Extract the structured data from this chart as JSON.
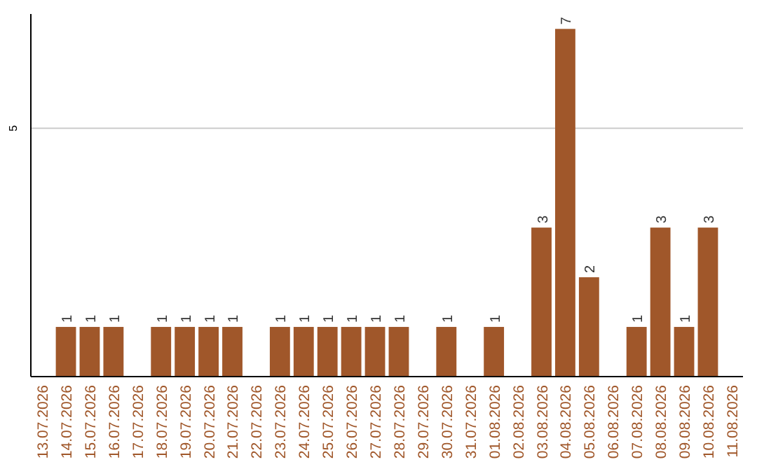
{
  "chart_data": {
    "type": "bar",
    "categories": [
      "13.07.2026",
      "14.07.2026",
      "15.07.2026",
      "16.07.2026",
      "17.07.2026",
      "18.07.2026",
      "19.07.2026",
      "20.07.2026",
      "21.07.2026",
      "22.07.2026",
      "23.07.2026",
      "24.07.2026",
      "25.07.2026",
      "26.07.2026",
      "27.07.2026",
      "28.07.2026",
      "29.07.2026",
      "30.07.2026",
      "31.07.2026",
      "01.08.2026",
      "02.08.2026",
      "03.08.2026",
      "04.08.2026",
      "05.08.2026",
      "06.08.2026",
      "07.08.2026",
      "08.08.2026",
      "09.08.2026",
      "10.08.2026",
      "11.08.2026"
    ],
    "values": [
      0,
      1,
      1,
      1,
      0,
      1,
      1,
      1,
      1,
      0,
      1,
      1,
      1,
      1,
      1,
      1,
      0,
      1,
      0,
      1,
      0,
      3,
      7,
      2,
      0,
      1,
      3,
      1,
      3,
      0
    ],
    "value_labels": [
      null,
      "1",
      "1",
      "1",
      null,
      "1",
      "1",
      "1",
      "1",
      null,
      "1",
      "1",
      "1",
      "1",
      "1",
      "1",
      null,
      "1",
      null,
      "1",
      null,
      "3",
      "7",
      "2",
      null,
      "1",
      "3",
      "1",
      "3",
      null
    ],
    "color": "#a0572a",
    "ylim": [
      0,
      7.3
    ],
    "yticks": [
      5
    ],
    "grid": "y"
  }
}
